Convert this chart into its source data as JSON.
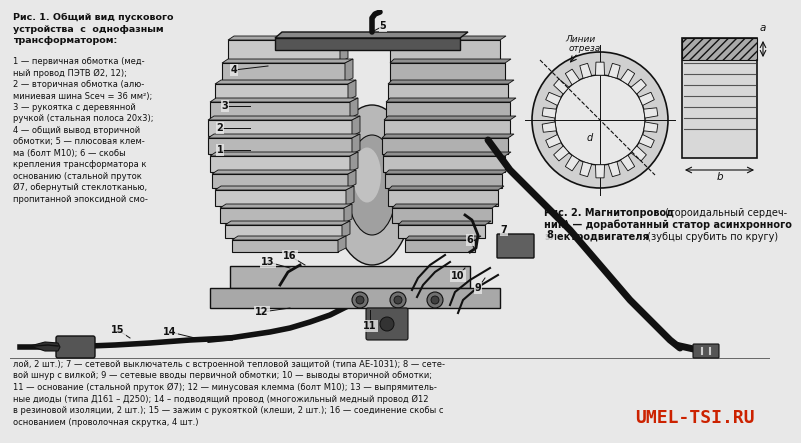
{
  "bg_color": "#e8e8e8",
  "line_color": "#111111",
  "title_bold": "Рис. 1. Общий вид пускового\nустройства с однофазным\nтрансформатором:",
  "desc_text": "1 — первичная обмотка (мед-\nный провод ПЭТВ Ø2, 12);\n2 — вторичная обмотка (алю-\nминиевая шина Sсеч = 36 мм²);\n3 — рукоятка с деревянной\nручкой (стальная полоса 20х3);\n4 — общий вывод вторичной\nобмотки; 5 — плюсовая клем-\nма (болт М10); 6 — скобы\nкрепления трансформатора к\nоснованию (стальной пруток\nØ7, обернутый стеклотканью,\nпропитанной эпоксидной смо-",
  "bottom_text": "лой, 2 шт.); 7 — сетевой выключатель с встроенной тепловой защитой (типа АЕ-1031); 8 — сете-\nвой шнур с вилкой; 9 — сетевые вводы первичной обмотки; 10 — выводы вторичной обмотки;\n11 — основание (стальной пруток Ø7); 12 — минусовая клемма (болт М10); 13 — выпрямитель-\nные диоды (типа Д161 – Д250); 14 – подводящий провод (многожильный медный провод Ø12\nв резиновой изоляции, 2 шт.); 15 — зажим с рукояткой (клеши, 2 шт.); 16 — соединение скобы с\nоснованием (проволочная скрутка, 4 шт.)",
  "fig2_caption_bold": "Рис. 2. Магнитопровод",
  "fig2_caption_rest": " (тороидальный сердеч-\nник) — доработанный статор асинхронного\nэлектродвигателя (зубцы срубить по кругу)",
  "watermark": "UMEL-TSI.RU",
  "watermark_color": "#cc2200",
  "gray_body": "#c0c0c0",
  "dark_gray": "#404040",
  "mid_gray": "#808080",
  "light_gray": "#d4d4d4"
}
